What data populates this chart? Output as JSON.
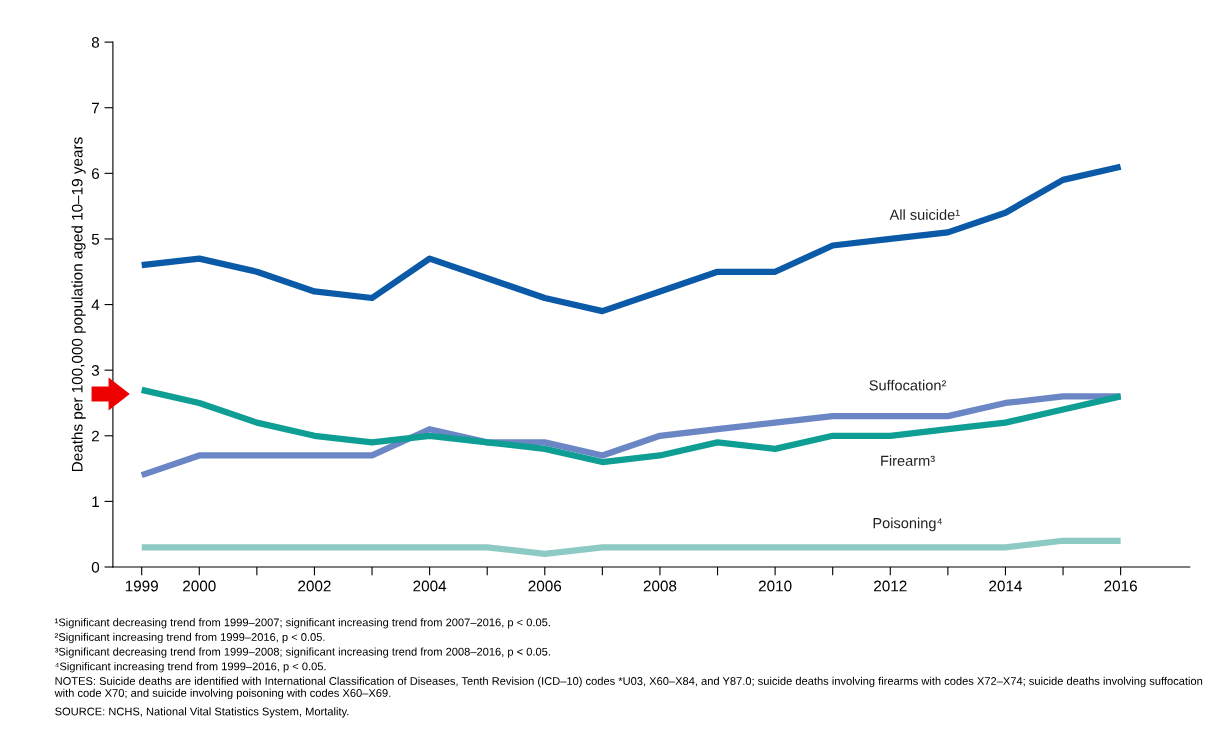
{
  "chart_data": {
    "type": "line",
    "ylabel": "Deaths per 100,000 population aged 10–19 years",
    "x": [
      1999,
      2000,
      2001,
      2002,
      2003,
      2004,
      2005,
      2006,
      2007,
      2008,
      2009,
      2010,
      2011,
      2012,
      2013,
      2014,
      2015,
      2016
    ],
    "series": [
      {
        "name": "All suicide¹",
        "color": "#0a5aa8",
        "values": [
          4.6,
          4.7,
          4.5,
          4.2,
          4.1,
          4.7,
          4.4,
          4.1,
          3.9,
          4.2,
          4.5,
          4.5,
          4.9,
          5.0,
          5.1,
          5.4,
          5.9,
          6.1
        ]
      },
      {
        "name": "Suffocation²",
        "color": "#6b86c4",
        "values": [
          1.4,
          1.7,
          1.7,
          1.7,
          1.7,
          2.1,
          1.9,
          1.9,
          1.7,
          2.0,
          2.1,
          2.2,
          2.3,
          2.3,
          2.3,
          2.5,
          2.6,
          2.6
        ]
      },
      {
        "name": "Firearm³",
        "color": "#0f9e94",
        "values": [
          2.7,
          2.5,
          2.2,
          2.0,
          1.9,
          2.0,
          1.9,
          1.8,
          1.6,
          1.7,
          1.9,
          1.8,
          2.0,
          2.0,
          2.1,
          2.2,
          2.4,
          2.6
        ]
      },
      {
        "name": "Poisoning⁴",
        "color": "#8ecac4",
        "values": [
          0.3,
          0.3,
          0.3,
          0.3,
          0.3,
          0.3,
          0.3,
          0.2,
          0.3,
          0.3,
          0.3,
          0.3,
          0.3,
          0.3,
          0.3,
          0.3,
          0.4,
          0.4
        ]
      }
    ],
    "xlim": [
      1998.5,
      2017.2
    ],
    "xticks": [
      1999,
      2000,
      {
        "value": 2001,
        "label": null
      },
      2002,
      {
        "value": 2003,
        "label": null
      },
      2004,
      {
        "value": 2005,
        "label": null
      },
      2006,
      {
        "value": 2007,
        "label": null
      },
      2008,
      {
        "value": 2009,
        "label": null
      },
      2010,
      {
        "value": 2011,
        "label": null
      },
      2012,
      {
        "value": 2013,
        "label": null
      },
      2014,
      {
        "value": 2015,
        "label": null
      },
      2016
    ],
    "ylim": [
      0,
      8
    ],
    "yticks": [
      0,
      1,
      2,
      3,
      4,
      5,
      6,
      7,
      8
    ],
    "grid": false,
    "legend": false,
    "marker": "none",
    "line_style": "solid",
    "annotations": [
      "¹Significant decreasing trend from 1999–2007; significant increasing trend from 2007–2016, p < 0.05.",
      "²Significant increasing trend from 1999–2016, p < 0.05.",
      "³Significant decreasing trend from 1999–2008; significant increasing trend from 2008–2016, p < 0.05.",
      "⁴Significant increasing trend from 1999–2016, p < 0.05.",
      "NOTES: Suicide deaths are identified with International Classification of Diseases, Tenth Revision (ICD–10) codes *U03, X60–X84, and Y87.0; suicide deaths involving firearms with codes X72–X74; suicide deaths involving suffocation with code X70; and suicide involving poisoning with codes X60–X69.",
      "SOURCE: NCHS, National Vital Statistics System, Mortality."
    ]
  }
}
